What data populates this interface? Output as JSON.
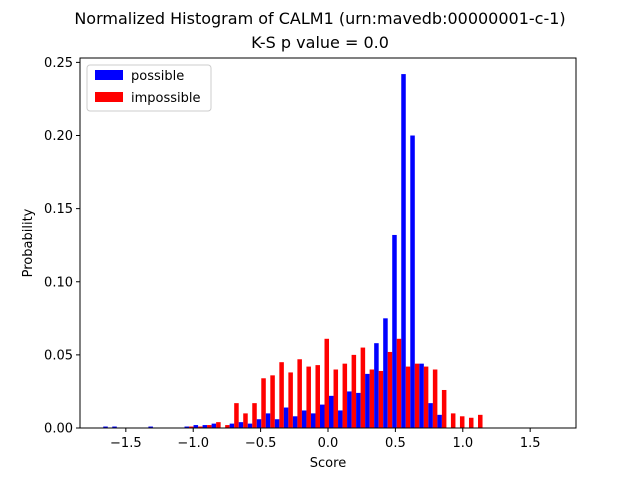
{
  "chart_data": {
    "type": "bar",
    "title": "Normalized Histogram of CALM1 (urn:mavedb:00000001-c-1)",
    "subtitle": "K-S p value = 0.0",
    "xlabel": "Score",
    "ylabel": "Probability",
    "xlim": [
      -1.84,
      1.84
    ],
    "ylim": [
      0,
      0.253
    ],
    "xticks": [
      -1.5,
      -1.0,
      -0.5,
      0.0,
      0.5,
      1.0,
      1.5
    ],
    "xtick_labels": [
      "−1.5",
      "−1.0",
      "−0.5",
      "0.0",
      "0.5",
      "1.0",
      "1.5"
    ],
    "yticks": [
      0.0,
      0.05,
      0.1,
      0.15,
      0.2,
      0.25
    ],
    "ytick_labels": [
      "0.00",
      "0.05",
      "0.10",
      "0.15",
      "0.20",
      "0.25"
    ],
    "legend_position": "top-left",
    "bin_width": 0.067,
    "x": [
      -1.634,
      -1.567,
      -1.5,
      -1.433,
      -1.366,
      -1.299,
      -1.232,
      -1.165,
      -1.098,
      -1.031,
      -0.964,
      -0.897,
      -0.83,
      -0.763,
      -0.696,
      -0.629,
      -0.562,
      -0.495,
      -0.428,
      -0.361,
      -0.294,
      -0.227,
      -0.16,
      -0.093,
      -0.026,
      0.041,
      0.108,
      0.175,
      0.242,
      0.309,
      0.376,
      0.443,
      0.51,
      0.577,
      0.644,
      0.711,
      0.778,
      0.845,
      0.912,
      0.979,
      1.046,
      1.113,
      1.18,
      1.247,
      1.314,
      1.381,
      1.448,
      1.515,
      1.582,
      1.649
    ],
    "series": [
      {
        "name": "possible",
        "color": "#0000ff",
        "values": [
          0.001,
          0.001,
          0.0,
          0.0,
          0.0,
          0.001,
          0.0,
          0.0,
          0.0,
          0.001,
          0.002,
          0.002,
          0.003,
          0.0,
          0.003,
          0.004,
          0.003,
          0.006,
          0.01,
          0.006,
          0.014,
          0.008,
          0.012,
          0.01,
          0.016,
          0.022,
          0.012,
          0.025,
          0.024,
          0.037,
          0.058,
          0.075,
          0.132,
          0.242,
          0.2,
          0.044,
          0.017,
          0.009,
          0.0,
          0.0,
          0.0,
          0.0,
          0.0,
          0.0,
          0.0,
          0.0,
          0.0,
          0.0,
          0.0,
          0.0
        ]
      },
      {
        "name": "impossible",
        "color": "#ff0000",
        "values": [
          0.0,
          0.0,
          0.0,
          0.0,
          0.0,
          0.0,
          0.0,
          0.0,
          0.0,
          0.001,
          0.001,
          0.002,
          0.004,
          0.002,
          0.017,
          0.01,
          0.017,
          0.034,
          0.036,
          0.045,
          0.038,
          0.047,
          0.042,
          0.043,
          0.061,
          0.04,
          0.044,
          0.05,
          0.055,
          0.04,
          0.039,
          0.052,
          0.061,
          0.042,
          0.044,
          0.042,
          0.04,
          0.026,
          0.01,
          0.008,
          0.007,
          0.009,
          0.0,
          0.0,
          0.0,
          0.0,
          0.0,
          0.0,
          0.0,
          0.0
        ]
      }
    ]
  }
}
